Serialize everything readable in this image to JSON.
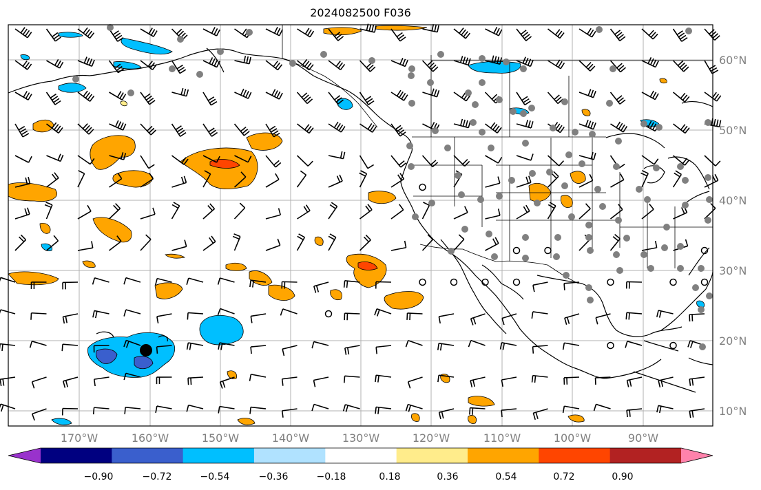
{
  "title": "2024082500 F036",
  "lat_labels": [
    "60°N",
    "50°N",
    "40°N",
    "30°N",
    "20°N",
    "10°N"
  ],
  "lon_labels": [
    "170°W",
    "160°W",
    "150°W",
    "140°W",
    "130°W",
    "120°W",
    "110°W",
    "100°W",
    "90°W"
  ],
  "colorbar": {
    "colors": [
      "#9932cc",
      "#000080",
      "#3a5fcd",
      "#00bfff",
      "#b0e2ff",
      "#ffffff",
      "#ffec8b",
      "#ffa500",
      "#ff4500",
      "#b22222",
      "#ff82ab"
    ],
    "ticks": [
      "−0.90",
      "−0.72",
      "−0.54",
      "−0.36",
      "−0.18",
      "0.18",
      "0.36",
      "0.54",
      "0.72",
      "0.90"
    ]
  },
  "map_colors": {
    "orange": "#ffa500",
    "red_orange": "#ff4500",
    "light_yellow": "#ffec8b",
    "deep_sky_blue": "#00bfff",
    "royal_blue": "#3a5fcd",
    "grid": "#b0b0b0",
    "station_dot": "#808080"
  }
}
